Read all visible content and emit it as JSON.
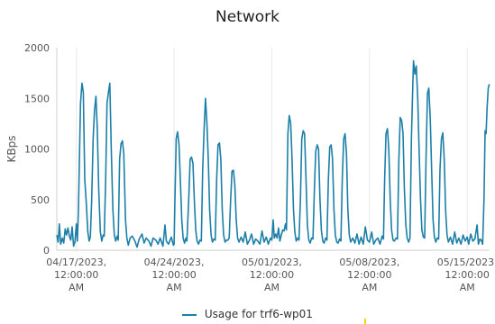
{
  "chart_data": {
    "type": "line",
    "title": "Network",
    "ylabel": "KBps",
    "xlabel": "",
    "ylim": [
      0,
      2000
    ],
    "y_ticks": [
      0,
      500,
      1000,
      1500,
      2000
    ],
    "x_ticks": [
      {
        "day": 0,
        "label": [
          "04/17/2023,",
          "12:00:00",
          "AM"
        ]
      },
      {
        "day": 7,
        "label": [
          "04/24/2023,",
          "12:00:00",
          "AM"
        ]
      },
      {
        "day": 14,
        "label": [
          "05/01/2023,",
          "12:00:00",
          "AM"
        ]
      },
      {
        "day": 21,
        "label": [
          "05/08/2023,",
          "12:00:00",
          "AM"
        ]
      },
      {
        "day": 28,
        "label": [
          "05/15/2023,",
          "12:00:00",
          "AM"
        ]
      }
    ],
    "xlim_days": [
      -1.4,
      29.6
    ],
    "grid": "vertical",
    "legend_position": "bottom",
    "series": [
      {
        "name": "Usage for trf6-wp01",
        "color": "#1b7fa8",
        "points": [
          [
            -1.4,
            150
          ],
          [
            -1.3,
            80
          ],
          [
            -1.22,
            260
          ],
          [
            -1.12,
            60
          ],
          [
            -1.0,
            120
          ],
          [
            -0.9,
            70
          ],
          [
            -0.8,
            210
          ],
          [
            -0.7,
            150
          ],
          [
            -0.6,
            220
          ],
          [
            -0.5,
            140
          ],
          [
            -0.4,
            100
          ],
          [
            -0.3,
            230
          ],
          [
            -0.2,
            40
          ],
          [
            -0.1,
            80
          ],
          [
            0.0,
            260
          ],
          [
            0.07,
            90
          ],
          [
            0.15,
            400
          ],
          [
            0.3,
            1450
          ],
          [
            0.4,
            1650
          ],
          [
            0.5,
            1560
          ],
          [
            0.6,
            700
          ],
          [
            0.72,
            450
          ],
          [
            0.82,
            180
          ],
          [
            0.92,
            90
          ],
          [
            1.0,
            130
          ],
          [
            1.1,
            500
          ],
          [
            1.2,
            1100
          ],
          [
            1.3,
            1380
          ],
          [
            1.4,
            1520
          ],
          [
            1.5,
            1200
          ],
          [
            1.6,
            600
          ],
          [
            1.72,
            180
          ],
          [
            1.82,
            90
          ],
          [
            1.92,
            150
          ],
          [
            2.0,
            140
          ],
          [
            2.1,
            700
          ],
          [
            2.2,
            1450
          ],
          [
            2.3,
            1560
          ],
          [
            2.4,
            1650
          ],
          [
            2.5,
            1000
          ],
          [
            2.62,
            400
          ],
          [
            2.72,
            150
          ],
          [
            2.82,
            90
          ],
          [
            2.92,
            140
          ],
          [
            3.0,
            100
          ],
          [
            3.1,
            900
          ],
          [
            3.2,
            1050
          ],
          [
            3.3,
            1080
          ],
          [
            3.4,
            950
          ],
          [
            3.52,
            300
          ],
          [
            3.62,
            120
          ],
          [
            3.72,
            50
          ],
          [
            3.85,
            120
          ],
          [
            4.0,
            140
          ],
          [
            4.2,
            90
          ],
          [
            4.35,
            30
          ],
          [
            4.5,
            110
          ],
          [
            4.7,
            160
          ],
          [
            4.85,
            70
          ],
          [
            5.0,
            120
          ],
          [
            5.2,
            90
          ],
          [
            5.35,
            40
          ],
          [
            5.5,
            120
          ],
          [
            5.7,
            100
          ],
          [
            5.85,
            60
          ],
          [
            6.0,
            120
          ],
          [
            6.2,
            40
          ],
          [
            6.35,
            250
          ],
          [
            6.45,
            90
          ],
          [
            6.6,
            60
          ],
          [
            6.8,
            130
          ],
          [
            6.95,
            50
          ],
          [
            7.0,
            60
          ],
          [
            7.05,
            400
          ],
          [
            7.15,
            1100
          ],
          [
            7.25,
            1170
          ],
          [
            7.35,
            1050
          ],
          [
            7.45,
            700
          ],
          [
            7.55,
            300
          ],
          [
            7.65,
            120
          ],
          [
            7.75,
            70
          ],
          [
            7.85,
            120
          ],
          [
            7.92,
            90
          ],
          [
            8.05,
            500
          ],
          [
            8.15,
            900
          ],
          [
            8.25,
            920
          ],
          [
            8.35,
            860
          ],
          [
            8.45,
            500
          ],
          [
            8.55,
            200
          ],
          [
            8.65,
            90
          ],
          [
            8.75,
            60
          ],
          [
            8.85,
            100
          ],
          [
            8.95,
            90
          ],
          [
            9.05,
            800
          ],
          [
            9.15,
            1200
          ],
          [
            9.25,
            1500
          ],
          [
            9.35,
            1250
          ],
          [
            9.45,
            900
          ],
          [
            9.55,
            400
          ],
          [
            9.65,
            150
          ],
          [
            9.75,
            80
          ],
          [
            9.85,
            110
          ],
          [
            9.95,
            100
          ],
          [
            10.05,
            700
          ],
          [
            10.15,
            1040
          ],
          [
            10.25,
            1060
          ],
          [
            10.35,
            900
          ],
          [
            10.45,
            400
          ],
          [
            10.55,
            150
          ],
          [
            10.65,
            80
          ],
          [
            10.75,
            100
          ],
          [
            10.85,
            100
          ],
          [
            10.95,
            120
          ],
          [
            11.05,
            500
          ],
          [
            11.15,
            780
          ],
          [
            11.25,
            790
          ],
          [
            11.35,
            650
          ],
          [
            11.45,
            300
          ],
          [
            11.55,
            120
          ],
          [
            11.65,
            80
          ],
          [
            11.8,
            130
          ],
          [
            11.95,
            80
          ],
          [
            12.1,
            180
          ],
          [
            12.25,
            60
          ],
          [
            12.4,
            100
          ],
          [
            12.55,
            160
          ],
          [
            12.7,
            60
          ],
          [
            12.85,
            110
          ],
          [
            13.0,
            90
          ],
          [
            13.15,
            60
          ],
          [
            13.3,
            190
          ],
          [
            13.45,
            80
          ],
          [
            13.6,
            130
          ],
          [
            13.75,
            60
          ],
          [
            13.9,
            120
          ],
          [
            14.0,
            100
          ],
          [
            14.1,
            300
          ],
          [
            14.18,
            120
          ],
          [
            14.28,
            160
          ],
          [
            14.38,
            120
          ],
          [
            14.48,
            220
          ],
          [
            14.58,
            90
          ],
          [
            14.68,
            150
          ],
          [
            14.78,
            200
          ],
          [
            14.88,
            190
          ],
          [
            14.98,
            260
          ],
          [
            15.05,
            200
          ],
          [
            15.15,
            1150
          ],
          [
            15.25,
            1330
          ],
          [
            15.35,
            1250
          ],
          [
            15.45,
            900
          ],
          [
            15.55,
            400
          ],
          [
            15.65,
            180
          ],
          [
            15.75,
            90
          ],
          [
            15.85,
            120
          ],
          [
            15.95,
            100
          ],
          [
            16.05,
            500
          ],
          [
            16.15,
            1100
          ],
          [
            16.25,
            1180
          ],
          [
            16.35,
            1150
          ],
          [
            16.45,
            700
          ],
          [
            16.55,
            250
          ],
          [
            16.65,
            100
          ],
          [
            16.75,
            70
          ],
          [
            16.85,
            120
          ],
          [
            16.95,
            110
          ],
          [
            17.05,
            600
          ],
          [
            17.15,
            980
          ],
          [
            17.25,
            1040
          ],
          [
            17.35,
            1000
          ],
          [
            17.45,
            500
          ],
          [
            17.55,
            200
          ],
          [
            17.65,
            90
          ],
          [
            17.75,
            70
          ],
          [
            17.85,
            120
          ],
          [
            17.95,
            100
          ],
          [
            18.05,
            700
          ],
          [
            18.15,
            1020
          ],
          [
            18.25,
            1040
          ],
          [
            18.35,
            900
          ],
          [
            18.45,
            400
          ],
          [
            18.55,
            150
          ],
          [
            18.65,
            80
          ],
          [
            18.75,
            70
          ],
          [
            18.85,
            110
          ],
          [
            18.95,
            90
          ],
          [
            19.05,
            700
          ],
          [
            19.15,
            1100
          ],
          [
            19.25,
            1150
          ],
          [
            19.35,
            950
          ],
          [
            19.45,
            400
          ],
          [
            19.55,
            150
          ],
          [
            19.65,
            80
          ],
          [
            19.8,
            120
          ],
          [
            19.95,
            70
          ],
          [
            20.1,
            160
          ],
          [
            20.25,
            60
          ],
          [
            20.4,
            130
          ],
          [
            20.55,
            60
          ],
          [
            20.7,
            230
          ],
          [
            20.85,
            100
          ],
          [
            21.0,
            80
          ],
          [
            21.15,
            180
          ],
          [
            21.3,
            60
          ],
          [
            21.45,
            100
          ],
          [
            21.6,
            120
          ],
          [
            21.75,
            60
          ],
          [
            21.9,
            140
          ],
          [
            22.0,
            110
          ],
          [
            22.08,
            700
          ],
          [
            22.18,
            1150
          ],
          [
            22.28,
            1200
          ],
          [
            22.38,
            1000
          ],
          [
            22.48,
            500
          ],
          [
            22.58,
            200
          ],
          [
            22.68,
            100
          ],
          [
            22.78,
            90
          ],
          [
            22.9,
            120
          ],
          [
            23.0,
            110
          ],
          [
            23.1,
            900
          ],
          [
            23.2,
            1310
          ],
          [
            23.3,
            1280
          ],
          [
            23.4,
            1150
          ],
          [
            23.5,
            600
          ],
          [
            23.6,
            250
          ],
          [
            23.7,
            120
          ],
          [
            23.8,
            80
          ],
          [
            23.9,
            120
          ],
          [
            24.0,
            1100
          ],
          [
            24.1,
            1620
          ],
          [
            24.15,
            1870
          ],
          [
            24.25,
            1740
          ],
          [
            24.35,
            1820
          ],
          [
            24.45,
            1500
          ],
          [
            24.55,
            1000
          ],
          [
            24.65,
            500
          ],
          [
            24.75,
            200
          ],
          [
            24.85,
            130
          ],
          [
            24.95,
            120
          ],
          [
            25.05,
            900
          ],
          [
            25.15,
            1550
          ],
          [
            25.25,
            1600
          ],
          [
            25.35,
            1300
          ],
          [
            25.45,
            800
          ],
          [
            25.55,
            300
          ],
          [
            25.65,
            130
          ],
          [
            25.75,
            80
          ],
          [
            25.85,
            120
          ],
          [
            25.95,
            110
          ],
          [
            26.05,
            800
          ],
          [
            26.15,
            1100
          ],
          [
            26.25,
            1160
          ],
          [
            26.35,
            900
          ],
          [
            26.45,
            400
          ],
          [
            26.55,
            150
          ],
          [
            26.65,
            80
          ],
          [
            26.8,
            130
          ],
          [
            26.95,
            60
          ],
          [
            27.1,
            180
          ],
          [
            27.25,
            70
          ],
          [
            27.4,
            120
          ],
          [
            27.55,
            60
          ],
          [
            27.7,
            150
          ],
          [
            27.85,
            90
          ],
          [
            28.0,
            130
          ],
          [
            28.1,
            60
          ],
          [
            28.25,
            160
          ],
          [
            28.4,
            90
          ],
          [
            28.55,
            110
          ],
          [
            28.7,
            250
          ],
          [
            28.8,
            60
          ],
          [
            28.9,
            110
          ],
          [
            29.0,
            100
          ],
          [
            29.1,
            60
          ],
          [
            29.2,
            500
          ],
          [
            29.28,
            1180
          ],
          [
            29.35,
            1150
          ],
          [
            29.42,
            1400
          ],
          [
            29.5,
            1600
          ],
          [
            29.58,
            1640
          ]
        ]
      }
    ]
  }
}
